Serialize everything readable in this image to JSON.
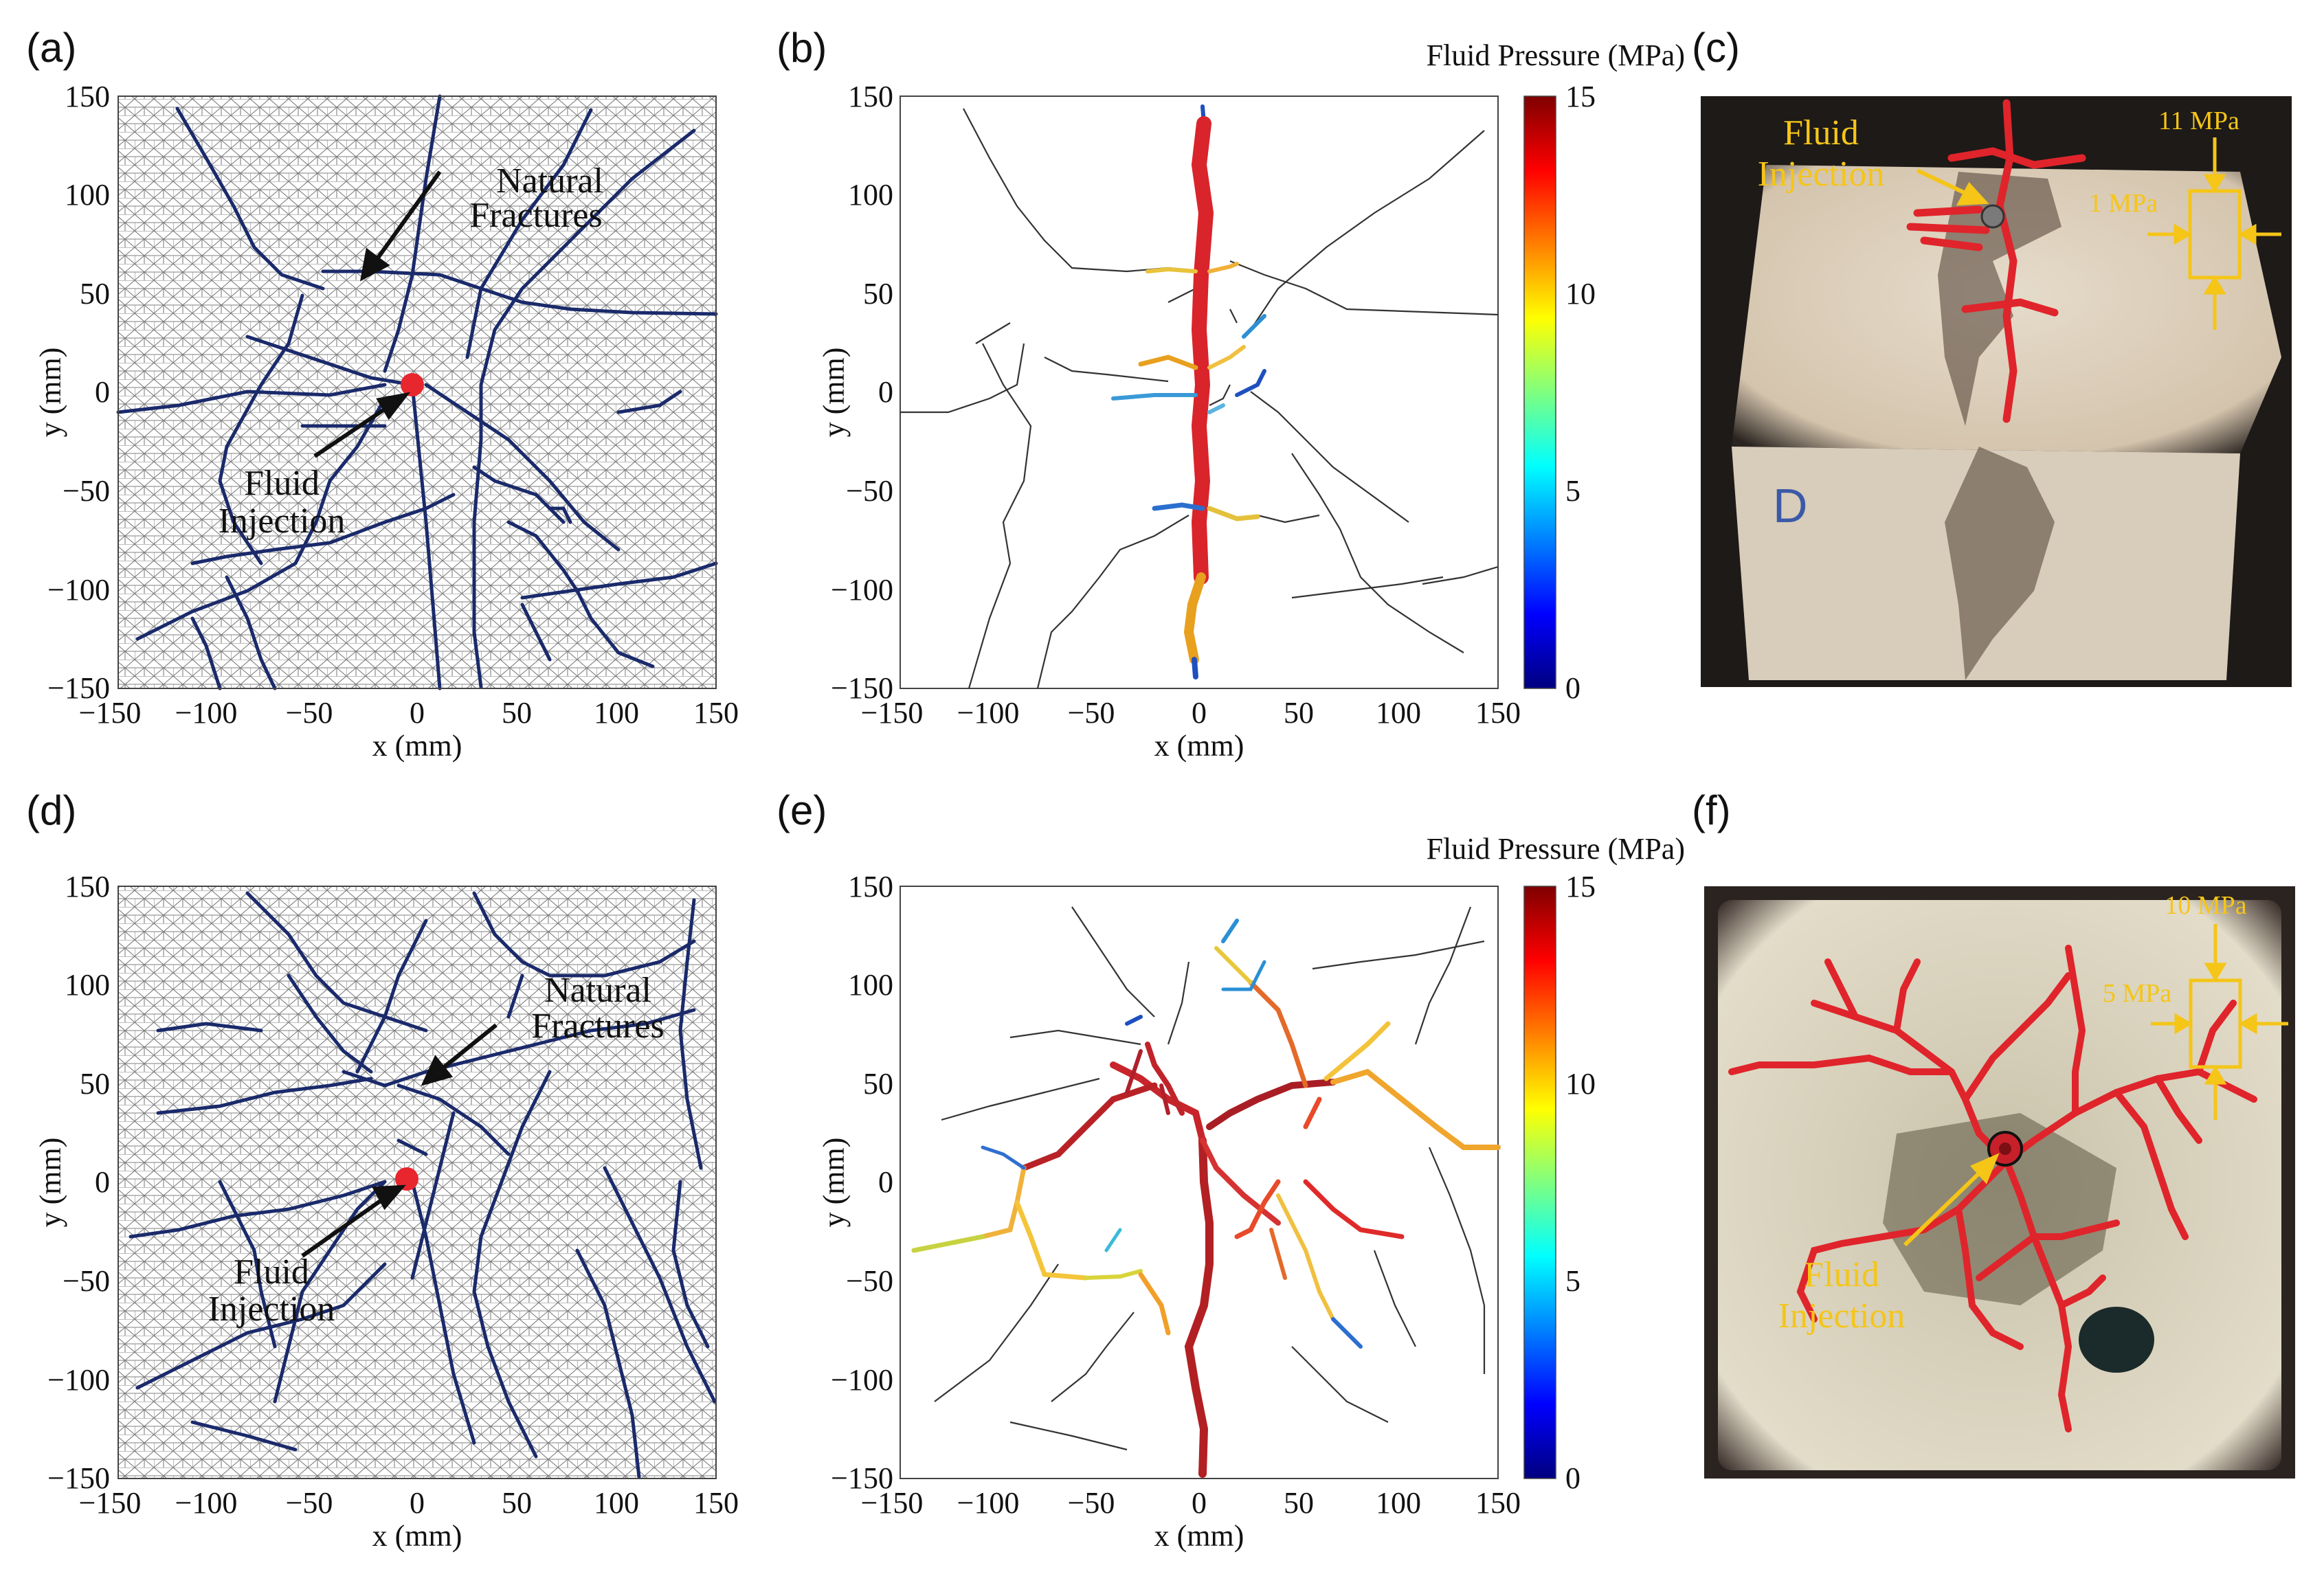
{
  "figure": {
    "panel_labels": [
      "(a)",
      "(b)",
      "(c)",
      "(d)",
      "(e)",
      "(f)"
    ],
    "colorbar_title": "Fluid Pressure (MPa)",
    "colorbar_ticks": [
      "15",
      "10",
      "5",
      "0"
    ],
    "colorbar_range": [
      0,
      15
    ],
    "annotations": {
      "natural": "Natural",
      "fractures": "Fractures",
      "fluid": "Fluid",
      "injection": "Injection"
    },
    "photo_c": {
      "fluid": "Fluid",
      "injection": "Injection",
      "stress_high": "11 MPa",
      "stress_low": "1 MPa"
    },
    "photo_f": {
      "fluid": "Fluid",
      "injection": "Injection",
      "stress_high": "10 MPa",
      "stress_low": "5 MPa"
    }
  },
  "chart_data": [
    {
      "panel": "a",
      "type": "scatter",
      "xlabel": "x (mm)",
      "ylabel": "y (mm)",
      "xlim": [
        -150,
        150
      ],
      "ylim": [
        -150,
        150
      ],
      "xticks": [
        "−150",
        "−100",
        "−50",
        "0",
        "50",
        "100",
        "150"
      ],
      "yticks": [
        "150",
        "100",
        "50",
        "0",
        "−50",
        "−100",
        "−150"
      ],
      "injection_point": [
        0,
        3
      ]
    },
    {
      "panel": "b",
      "type": "line",
      "xlabel": "x (mm)",
      "ylabel": "y (mm)",
      "xlim": [
        -150,
        150
      ],
      "ylim": [
        -150,
        150
      ],
      "xticks": [
        "−150",
        "−100",
        "−50",
        "0",
        "50",
        "100",
        "150"
      ],
      "yticks": [
        "150",
        "100",
        "50",
        "0",
        "−50",
        "−100",
        "−150"
      ]
    },
    {
      "panel": "d",
      "type": "scatter",
      "xlabel": "x (mm)",
      "ylabel": "y (mm)",
      "xlim": [
        -150,
        150
      ],
      "ylim": [
        -150,
        150
      ],
      "xticks": [
        "−150",
        "−100",
        "−50",
        "0",
        "50",
        "100",
        "150"
      ],
      "yticks": [
        "150",
        "100",
        "50",
        "0",
        "−50",
        "−100",
        "−150"
      ],
      "injection_point": [
        -5,
        0
      ]
    },
    {
      "panel": "e",
      "type": "line",
      "xlabel": "x (mm)",
      "ylabel": "y (mm)",
      "xlim": [
        -150,
        150
      ],
      "ylim": [
        -150,
        150
      ],
      "xticks": [
        "−150",
        "−100",
        "−50",
        "0",
        "50",
        "100",
        "150"
      ],
      "yticks": [
        "150",
        "100",
        "50",
        "0",
        "−50",
        "−100",
        "−150"
      ]
    }
  ]
}
